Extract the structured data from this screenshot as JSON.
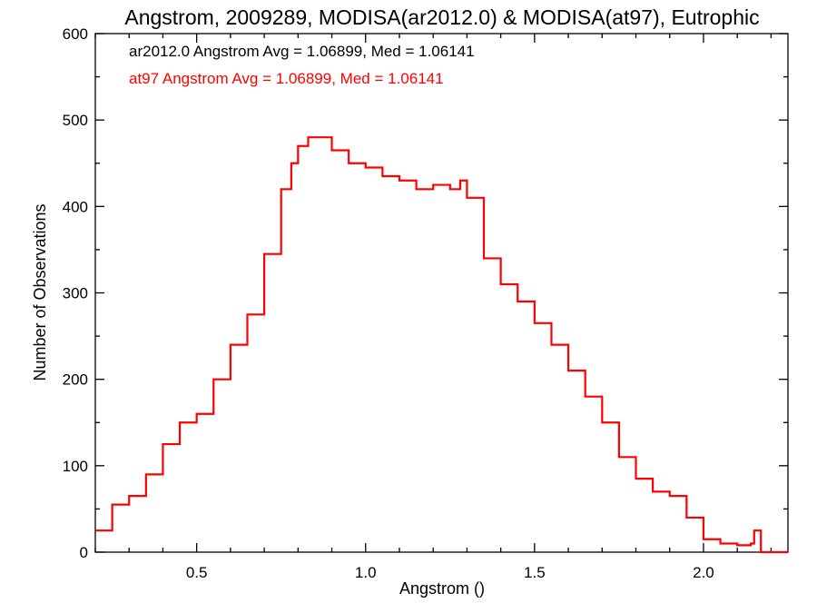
{
  "chart_data": {
    "type": "line",
    "title": "Angstrom, 2009289, MODISA(ar2012.0) & MODISA(at97), Eutrophic",
    "xlabel": "Angstrom ()",
    "ylabel": "Number of Observations",
    "xlim": [
      0.2,
      2.25
    ],
    "ylim": [
      0,
      600
    ],
    "xticks": [
      0.5,
      1.0,
      1.5,
      2.0
    ],
    "xtick_labels": [
      "0.5",
      "1.0",
      "1.5",
      "2.0"
    ],
    "xminor_step": 0.1,
    "yticks": [
      0,
      100,
      200,
      300,
      400,
      500,
      600
    ],
    "ytick_labels": [
      "0",
      "100",
      "200",
      "300",
      "400",
      "500",
      "600"
    ],
    "yminor_step": 50,
    "grid": false,
    "annotations": [
      {
        "text": "ar2012.0 Angstrom Avg = 1.06899, Med = 1.06141",
        "color": "#000000"
      },
      {
        "text": "at97 Angstrom Avg = 1.06899, Med = 1.06141",
        "color": "#ff0000"
      }
    ],
    "series": [
      {
        "color": "#ff0000",
        "x": [
          0.2,
          0.25,
          0.3,
          0.35,
          0.4,
          0.45,
          0.5,
          0.55,
          0.6,
          0.65,
          0.7,
          0.75,
          0.78,
          0.8,
          0.83,
          0.86,
          0.9,
          0.95,
          1.0,
          1.05,
          1.1,
          1.15,
          1.2,
          1.25,
          1.28,
          1.3,
          1.35,
          1.4,
          1.45,
          1.5,
          1.55,
          1.6,
          1.65,
          1.7,
          1.75,
          1.8,
          1.85,
          1.9,
          1.95,
          2.0,
          2.05,
          2.1,
          2.14,
          2.15,
          2.17,
          2.25
        ],
        "y": [
          25,
          55,
          65,
          90,
          125,
          150,
          160,
          200,
          240,
          275,
          345,
          420,
          450,
          470,
          480,
          480,
          465,
          450,
          445,
          435,
          430,
          420,
          425,
          420,
          430,
          410,
          340,
          310,
          290,
          265,
          240,
          210,
          180,
          150,
          110,
          85,
          70,
          65,
          40,
          15,
          10,
          8,
          10,
          25,
          0,
          0
        ]
      },
      {
        "color": "#000000",
        "x": [
          0.2,
          0.25,
          0.3,
          0.35,
          0.4,
          0.45,
          0.5,
          0.55,
          0.6,
          0.65,
          0.7,
          0.75,
          0.78,
          0.8,
          0.83,
          0.86,
          0.9,
          0.95,
          1.0,
          1.05,
          1.1,
          1.15,
          1.2,
          1.25,
          1.28,
          1.3,
          1.35,
          1.4,
          1.45,
          1.5,
          1.55,
          1.6,
          1.65,
          1.7,
          1.75,
          1.8,
          1.85,
          1.9,
          1.95,
          2.0,
          2.05,
          2.1,
          2.14,
          2.15,
          2.17,
          2.25
        ],
        "y": [
          25,
          55,
          65,
          90,
          125,
          150,
          160,
          200,
          240,
          275,
          345,
          420,
          450,
          470,
          480,
          480,
          465,
          450,
          445,
          435,
          430,
          420,
          425,
          420,
          430,
          410,
          340,
          310,
          290,
          265,
          240,
          210,
          180,
          150,
          110,
          85,
          70,
          65,
          40,
          15,
          10,
          8,
          10,
          25,
          0,
          0
        ]
      }
    ]
  }
}
